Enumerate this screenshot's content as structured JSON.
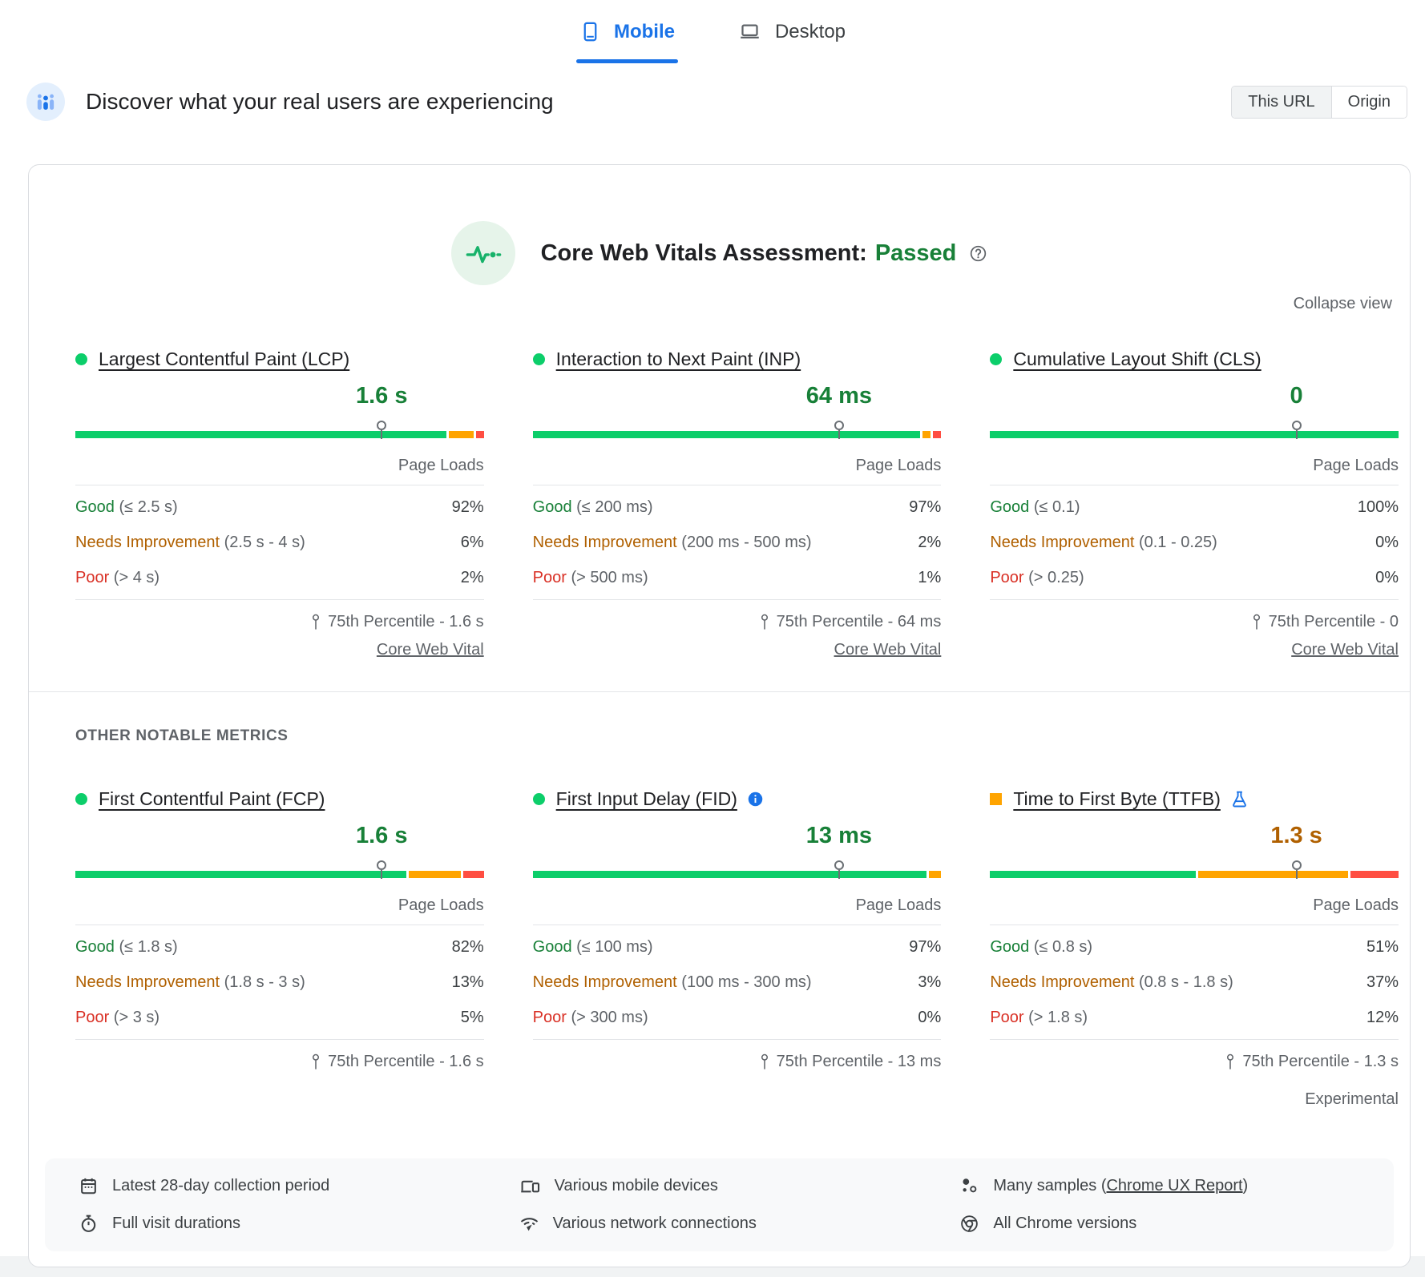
{
  "colors": {
    "good_bar": "#0cce6a",
    "ni_bar": "#ffa400",
    "poor_bar": "#ff4e42",
    "good_text": "#188038",
    "ni_text": "#b06000",
    "poor_text": "#d93025",
    "accent_blue": "#1a73e8"
  },
  "tabs": [
    {
      "label": "Mobile",
      "active": true
    },
    {
      "label": "Desktop",
      "active": false
    }
  ],
  "header": {
    "title": "Discover what your real users are experiencing",
    "scope_toggle": [
      {
        "label": "This URL",
        "active": true
      },
      {
        "label": "Origin",
        "active": false
      }
    ]
  },
  "assessment": {
    "title": "Core Web Vitals Assessment:",
    "status": "Passed",
    "collapse_label": "Collapse view"
  },
  "sections": {
    "other_metrics_header": "OTHER NOTABLE METRICS"
  },
  "metrics": [
    {
      "id": "lcp",
      "section": "core",
      "bullet": "good-circle",
      "title": "Largest Contentful Paint (LCP)",
      "value": "1.6 s",
      "value_color": "good",
      "marker_pct": 75,
      "bar": [
        92,
        6,
        2
      ],
      "page_loads_label": "Page Loads",
      "distribution": [
        {
          "label": "Good",
          "range": "(≤ 2.5 s)",
          "value": "92%",
          "color": "good"
        },
        {
          "label": "Needs Improvement",
          "range": "(2.5 s - 4 s)",
          "value": "6%",
          "color": "ni"
        },
        {
          "label": "Poor",
          "range": "(> 4 s)",
          "value": "2%",
          "color": "poor"
        }
      ],
      "percentile": "75th Percentile - 1.6 s",
      "link": "Core Web Vital"
    },
    {
      "id": "inp",
      "section": "core",
      "bullet": "good-circle",
      "title": "Interaction to Next Paint (INP)",
      "value": "64 ms",
      "value_color": "good",
      "marker_pct": 75,
      "bar": [
        97,
        2,
        1
      ],
      "page_loads_label": "Page Loads",
      "distribution": [
        {
          "label": "Good",
          "range": "(≤ 200 ms)",
          "value": "97%",
          "color": "good"
        },
        {
          "label": "Needs Improvement",
          "range": "(200 ms - 500 ms)",
          "value": "2%",
          "color": "ni"
        },
        {
          "label": "Poor",
          "range": "(> 500 ms)",
          "value": "1%",
          "color": "poor"
        }
      ],
      "percentile": "75th Percentile - 64 ms",
      "link": "Core Web Vital"
    },
    {
      "id": "cls",
      "section": "core",
      "bullet": "good-circle",
      "title": "Cumulative Layout Shift (CLS)",
      "value": "0",
      "value_color": "good",
      "marker_pct": 75,
      "bar": [
        100,
        0,
        0
      ],
      "page_loads_label": "Page Loads",
      "distribution": [
        {
          "label": "Good",
          "range": "(≤ 0.1)",
          "value": "100%",
          "color": "good"
        },
        {
          "label": "Needs Improvement",
          "range": "(0.1 - 0.25)",
          "value": "0%",
          "color": "ni"
        },
        {
          "label": "Poor",
          "range": "(> 0.25)",
          "value": "0%",
          "color": "poor"
        }
      ],
      "percentile": "75th Percentile - 0",
      "link": "Core Web Vital"
    },
    {
      "id": "fcp",
      "section": "other",
      "bullet": "good-circle",
      "title": "First Contentful Paint (FCP)",
      "value": "1.6 s",
      "value_color": "good",
      "marker_pct": 75,
      "bar": [
        82,
        13,
        5
      ],
      "page_loads_label": "Page Loads",
      "distribution": [
        {
          "label": "Good",
          "range": "(≤ 1.8 s)",
          "value": "82%",
          "color": "good"
        },
        {
          "label": "Needs Improvement",
          "range": "(1.8 s - 3 s)",
          "value": "13%",
          "color": "ni"
        },
        {
          "label": "Poor",
          "range": "(> 3 s)",
          "value": "5%",
          "color": "poor"
        }
      ],
      "percentile": "75th Percentile - 1.6 s"
    },
    {
      "id": "fid",
      "section": "other",
      "bullet": "good-circle",
      "title": "First Input Delay (FID)",
      "title_icon": "info-icon",
      "value": "13 ms",
      "value_color": "good",
      "marker_pct": 75,
      "bar": [
        97,
        3,
        0
      ],
      "page_loads_label": "Page Loads",
      "distribution": [
        {
          "label": "Good",
          "range": "(≤ 100 ms)",
          "value": "97%",
          "color": "good"
        },
        {
          "label": "Needs Improvement",
          "range": "(100 ms - 300 ms)",
          "value": "3%",
          "color": "ni"
        },
        {
          "label": "Poor",
          "range": "(> 300 ms)",
          "value": "0%",
          "color": "poor"
        }
      ],
      "percentile": "75th Percentile - 13 ms"
    },
    {
      "id": "ttfb",
      "section": "other",
      "bullet": "ni-square",
      "title": "Time to First Byte (TTFB)",
      "title_icon": "flask-icon",
      "value": "1.3 s",
      "value_color": "ni",
      "marker_pct": 75,
      "bar": [
        51,
        37,
        12
      ],
      "page_loads_label": "Page Loads",
      "distribution": [
        {
          "label": "Good",
          "range": "(≤ 0.8 s)",
          "value": "51%",
          "color": "good"
        },
        {
          "label": "Needs Improvement",
          "range": "(0.8 s - 1.8 s)",
          "value": "37%",
          "color": "ni"
        },
        {
          "label": "Poor",
          "range": "(> 1.8 s)",
          "value": "12%",
          "color": "poor"
        }
      ],
      "percentile": "75th Percentile - 1.3 s",
      "note": "Experimental"
    }
  ],
  "footer_facts": [
    {
      "icon": "calendar-icon",
      "text": "Latest 28-day collection period"
    },
    {
      "icon": "devices-icon",
      "text": "Various mobile devices"
    },
    {
      "icon": "samples-icon",
      "prefix": "Many samples (",
      "link": "Chrome UX Report",
      "suffix": ")"
    },
    {
      "icon": "stopwatch-icon",
      "text": "Full visit durations"
    },
    {
      "icon": "network-icon",
      "text": "Various network connections"
    },
    {
      "icon": "chrome-icon",
      "text": "All Chrome versions"
    }
  ]
}
